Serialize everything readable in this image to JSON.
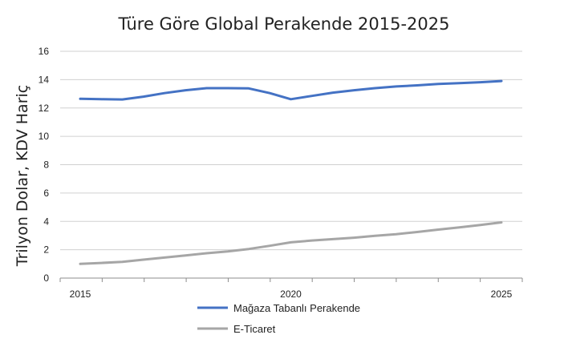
{
  "chart_data": {
    "type": "line",
    "title": "Türe Göre Global Perakende 2015-2025",
    "ylabel": "Trilyon Dolar, KDV Hariç",
    "xlabel": "",
    "xlim": [
      2015,
      2025
    ],
    "ylim": [
      0,
      16
    ],
    "yticks": [
      "0",
      "2",
      "4",
      "6",
      "8",
      "10",
      "12",
      "14",
      "16"
    ],
    "xticks": [
      "2015",
      "2020",
      "2025"
    ],
    "grid": "horizontal",
    "legend": "bottom",
    "series": [
      {
        "name": "Mağaza Tabanlı Perakende",
        "color": "#4472c4",
        "x": [
          2015,
          2015.5,
          2016,
          2016.5,
          2017,
          2017.5,
          2018,
          2018.5,
          2019,
          2019.5,
          2020,
          2020.5,
          2021,
          2021.5,
          2022,
          2022.5,
          2023,
          2023.5,
          2024,
          2024.5,
          2025
        ],
        "values": [
          12.65,
          12.62,
          12.6,
          12.8,
          13.05,
          13.25,
          13.4,
          13.4,
          13.38,
          13.05,
          12.62,
          12.85,
          13.08,
          13.25,
          13.4,
          13.52,
          13.6,
          13.7,
          13.75,
          13.82,
          13.9
        ]
      },
      {
        "name": "E-Ticaret",
        "color": "#a6a6a6",
        "x": [
          2015,
          2015.5,
          2016,
          2016.5,
          2017,
          2017.5,
          2018,
          2018.5,
          2019,
          2019.5,
          2020,
          2020.5,
          2021,
          2021.5,
          2022,
          2022.5,
          2023,
          2023.5,
          2024,
          2024.5,
          2025
        ],
        "values": [
          1.0,
          1.07,
          1.15,
          1.3,
          1.45,
          1.6,
          1.75,
          1.88,
          2.05,
          2.28,
          2.52,
          2.65,
          2.75,
          2.85,
          2.98,
          3.1,
          3.25,
          3.42,
          3.58,
          3.75,
          3.93
        ]
      }
    ]
  }
}
